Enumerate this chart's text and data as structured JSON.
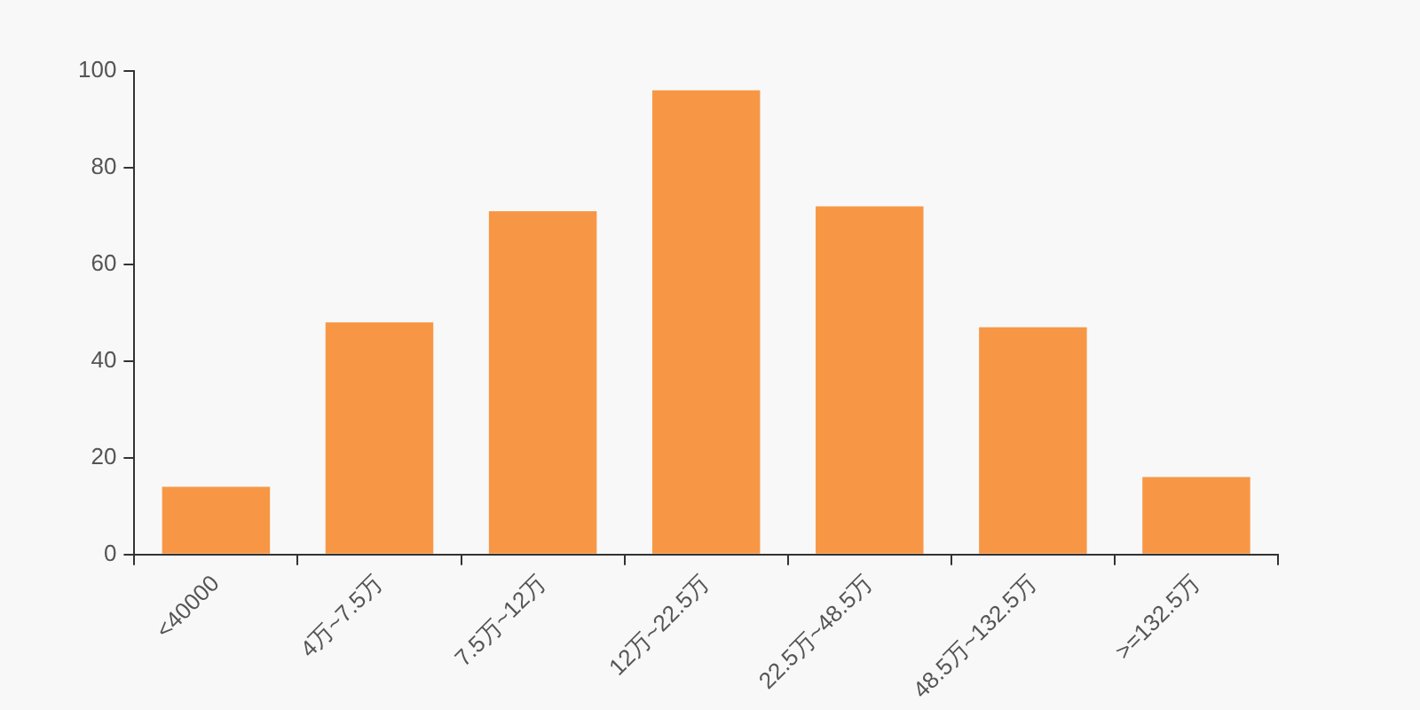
{
  "chart_data": {
    "type": "bar",
    "categories": [
      "<40000",
      "4万~7.5万",
      "7.5万~12万",
      "12万~22.5万",
      "22.5万~48.5万",
      "48.5万~132.5万",
      ">=132.5万"
    ],
    "values": [
      14,
      48,
      71,
      96,
      72,
      47,
      16
    ],
    "color": "#f79746",
    "ylim": [
      0,
      100
    ],
    "yticks": [
      0,
      20,
      40,
      60,
      80,
      100
    ],
    "grid": false,
    "legend": false
  }
}
